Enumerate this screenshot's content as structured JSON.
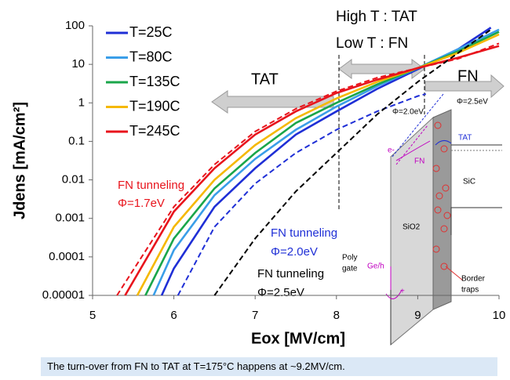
{
  "chart_data": {
    "type": "line",
    "y_label": "Jdens [mA/cm²]",
    "x_label": "Eox [MV/cm]",
    "log_y": true,
    "xlim": [
      5,
      10
    ],
    "xticks": [
      5,
      6,
      7,
      8,
      9,
      10
    ],
    "ylim": [
      1e-05,
      100
    ],
    "yticks": [
      100,
      10,
      1,
      0.1,
      0.01,
      0.001,
      0.0001,
      1e-05
    ],
    "legend_position": "upper left",
    "series": [
      {
        "name": "T=25C",
        "color": "#1f2fd6",
        "dash": false,
        "in_legend": true,
        "x": [
          5.85,
          6,
          6.5,
          7,
          7.5,
          8,
          8.5,
          9,
          9.5,
          9.9
        ],
        "values": [
          1e-05,
          5e-05,
          0.002,
          0.02,
          0.15,
          0.6,
          2.3,
          7.5,
          25,
          90
        ]
      },
      {
        "name": "T=80C",
        "color": "#3a9ee8",
        "dash": false,
        "in_legend": true,
        "x": [
          5.75,
          6,
          6.5,
          7,
          7.5,
          8,
          8.5,
          9,
          9.5,
          10
        ],
        "values": [
          1e-05,
          0.00015,
          0.004,
          0.035,
          0.2,
          0.8,
          2.7,
          8,
          25,
          80
        ]
      },
      {
        "name": "T=135C",
        "color": "#1aa64a",
        "dash": false,
        "in_legend": true,
        "x": [
          5.65,
          6,
          6.5,
          7,
          7.5,
          8,
          8.5,
          9,
          9.5,
          10
        ],
        "values": [
          1e-05,
          0.0003,
          0.006,
          0.05,
          0.3,
          1,
          3,
          8,
          22,
          70
        ]
      },
      {
        "name": "T=190C",
        "color": "#f5b800",
        "dash": false,
        "in_legend": true,
        "x": [
          5.55,
          6,
          6.5,
          7,
          7.5,
          8,
          8.5,
          9,
          9.5,
          10
        ],
        "values": [
          1e-05,
          0.0006,
          0.01,
          0.08,
          0.4,
          1.3,
          3.5,
          8,
          20,
          60
        ]
      },
      {
        "name": "T=245C",
        "color": "#e8141c",
        "dash": false,
        "in_legend": true,
        "x": [
          5.4,
          6,
          6.5,
          7,
          7.5,
          8,
          8.5,
          9,
          9.5,
          10
        ],
        "values": [
          1e-05,
          0.0015,
          0.02,
          0.15,
          0.6,
          1.8,
          4,
          8,
          15,
          30
        ]
      },
      {
        "color": "#e8141c",
        "dash": true,
        "in_legend": false,
        "x": [
          5.3,
          6,
          6.5,
          7,
          7.5,
          8,
          8.5,
          9,
          9.5,
          10
        ],
        "values": [
          1e-05,
          0.002,
          0.025,
          0.18,
          0.7,
          2,
          4.5,
          8,
          14,
          35
        ]
      },
      {
        "color": "#1f2fd6",
        "dash": true,
        "in_legend": false,
        "x": [
          6.05,
          6.5,
          7,
          7.5,
          8,
          8.5,
          9,
          9.1
        ],
        "values": [
          1e-05,
          0.0006,
          0.008,
          0.05,
          0.2,
          0.6,
          1.5,
          1.7
        ]
      },
      {
        "color": "#000000",
        "dash": true,
        "in_legend": false,
        "x": [
          6.5,
          7,
          7.5,
          8,
          8.5,
          9,
          9.5,
          9.9
        ],
        "values": [
          1e-05,
          0.0003,
          0.005,
          0.05,
          0.5,
          3.5,
          20,
          80
        ]
      }
    ],
    "annotations": {
      "high_t": "High T : TAT",
      "low_t": "Low T : FN",
      "tat": "TAT",
      "fn": "FN",
      "fn_red_1": "FN tunneling",
      "fn_red_2": "Φ=1.7eV",
      "fn_blue_1": "FN tunneling",
      "fn_blue_2": "Φ=2.0eV",
      "fn_black_1": "FN tunneling",
      "fn_black_2": "Φ=2.5eV"
    },
    "inset": {
      "phi_20": "Φ=2.0eV",
      "phi_25": "Φ=2.5eV",
      "tat": "TAT",
      "electron": "e-",
      "fn": "FN",
      "sic": "SiC",
      "sio2": "SiO2",
      "poly_gate_1": "Poly",
      "poly_gate_2": "gate",
      "ge_h": "Ge/h",
      "border_traps_1": "Border",
      "border_traps_2": "traps",
      "plus": "+"
    },
    "caption": "The turn-over from FN to TAT at T=175°C happens at ~9.2MV/cm."
  }
}
